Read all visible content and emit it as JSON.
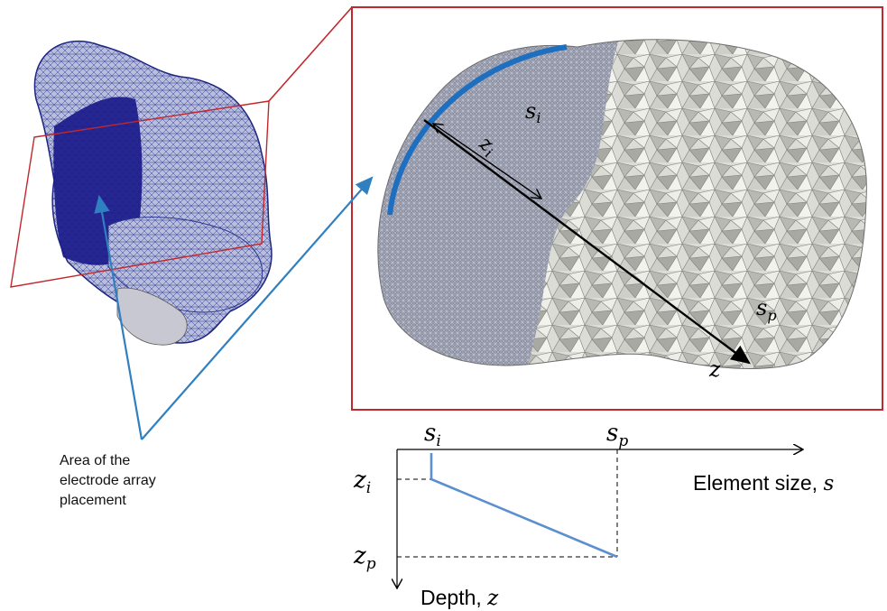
{
  "callout": {
    "lines": [
      "Area of the",
      "electrode array",
      "placement"
    ]
  },
  "slice_labels": {
    "si_base": "s",
    "si_sub": "i",
    "zi_base": "z",
    "zi_sub": "i",
    "sp_base": "s",
    "sp_sub": "p",
    "z": "z"
  },
  "graph": {
    "si_base": "s",
    "si_sub": "i",
    "sp_base": "s",
    "sp_sub": "p",
    "zi_base": "z",
    "zi_sub": "i",
    "zp_base": "z",
    "zp_sub": "p",
    "x_axis_label": "Element size, ",
    "x_axis_symbol": "s",
    "y_axis_label": "Depth, ",
    "y_axis_symbol": "z"
  },
  "colors": {
    "red_frame": "#c0282d",
    "blue_arrow": "#2f7fc1",
    "blue_arc": "#1f6fc0",
    "brain_fill": "#2a2aa0",
    "graph_line": "#5b8fd0"
  }
}
